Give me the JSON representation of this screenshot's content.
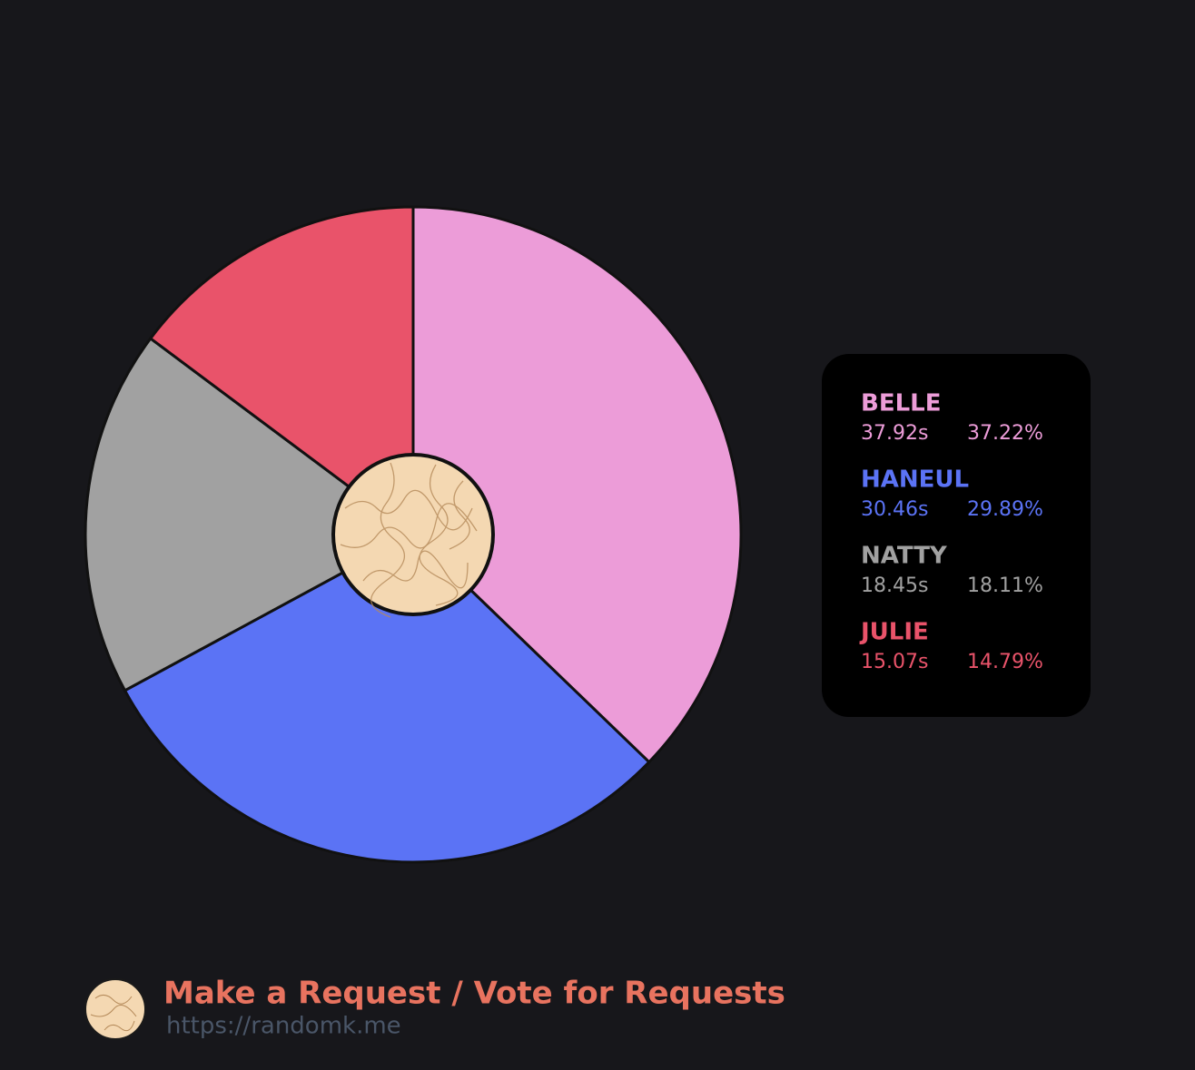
{
  "chart_data": {
    "type": "pie",
    "categories": [
      "BELLE",
      "HANEUL",
      "NATTY",
      "JULIE"
    ],
    "values": [
      37.22,
      29.89,
      18.11,
      14.79
    ],
    "value_labels": [
      "37.22%",
      "29.89%",
      "18.11%",
      "14.79%"
    ],
    "seconds": {
      "values": [
        37.92,
        30.46,
        18.45,
        15.07
      ],
      "value_labels": [
        "37.92s",
        "30.46s",
        "18.45s",
        "15.07s"
      ]
    },
    "colors": [
      "#ec9cd8",
      "#5b73f5",
      "#a1a1a1",
      "#e9536a"
    ]
  },
  "footer": {
    "title": "Make a Request / Vote for Requests",
    "url": "https://randomk.me"
  }
}
